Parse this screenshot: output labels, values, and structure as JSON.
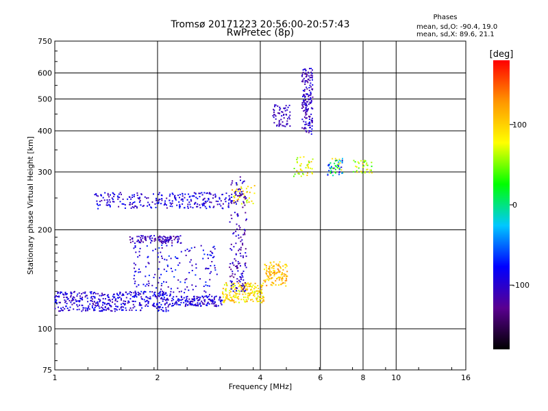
{
  "chart_data": {
    "type": "scatter",
    "title": "Tromsø 20171223 20:56:00-20:57:43",
    "subtitle": "RwPretec (8p)",
    "xlabel": "Frequency [MHz]",
    "ylabel": "Stationary phase Virtual Height [km]",
    "x_scale": "log",
    "y_scale": "log",
    "xlim": [
      1,
      16
    ],
    "ylim": [
      75,
      750
    ],
    "x_ticks": [
      1,
      2,
      4,
      6,
      8,
      10,
      16
    ],
    "y_ticks": [
      75,
      100,
      200,
      300,
      400,
      500,
      600,
      750
    ],
    "grid": true,
    "phases": {
      "heading": "Phases",
      "line_o": "mean, sd,O: -90.4, 19.0",
      "line_x": "mean, sd,X:  89.6, 21.1"
    },
    "colorbar": {
      "label": "[deg]",
      "range": [
        -180,
        180
      ],
      "ticks": [
        100,
        0,
        -100
      ],
      "colors": [
        "#000000",
        "#5a0090",
        "#0000ff",
        "#00c8ff",
        "#00ff00",
        "#ffff00",
        "#ff9600",
        "#ff0000"
      ]
    },
    "series": [
      {
        "freq_range": [
          1.0,
          2.2
        ],
        "height_range": [
          113,
          130
        ],
        "phase_range": [
          -120,
          -70
        ],
        "count": 420
      },
      {
        "freq_range": [
          2.2,
          3.1
        ],
        "height_range": [
          117,
          126
        ],
        "phase_range": [
          -120,
          -70
        ],
        "count": 150
      },
      {
        "freq_range": [
          3.1,
          4.1
        ],
        "height_range": [
          120,
          138
        ],
        "phase_range": [
          60,
          130
        ],
        "count": 200
      },
      {
        "freq_range": [
          4.1,
          4.8
        ],
        "height_range": [
          135,
          160
        ],
        "phase_range": [
          80,
          140
        ],
        "count": 120
      },
      {
        "freq_range": [
          1.3,
          3.3
        ],
        "height_range": [
          232,
          260
        ],
        "phase_range": [
          -120,
          -70
        ],
        "count": 260
      },
      {
        "freq_range": [
          1.65,
          2.35
        ],
        "height_range": [
          182,
          192
        ],
        "phase_range": [
          -130,
          -90
        ],
        "count": 110
      },
      {
        "freq_range": [
          3.3,
          3.85
        ],
        "height_range": [
          240,
          275
        ],
        "phase_range": [
          60,
          130
        ],
        "count": 45
      },
      {
        "freq_range": [
          3.25,
          3.65
        ],
        "height_range": [
          130,
          290
        ],
        "phase_range": [
          -135,
          -80
        ],
        "count": 160
      },
      {
        "freq_range": [
          4.35,
          4.9
        ],
        "height_range": [
          410,
          480
        ],
        "phase_range": [
          -120,
          -90
        ],
        "count": 60
      },
      {
        "freq_range": [
          5.3,
          5.7
        ],
        "height_range": [
          390,
          620
        ],
        "phase_range": [
          -130,
          -80
        ],
        "count": 170
      },
      {
        "freq_range": [
          5.0,
          5.7
        ],
        "height_range": [
          290,
          335
        ],
        "phase_range": [
          40,
          110
        ],
        "count": 40
      },
      {
        "freq_range": [
          6.3,
          7.0
        ],
        "height_range": [
          290,
          330
        ],
        "phase_range": [
          -110,
          100
        ],
        "count": 60
      },
      {
        "freq_range": [
          7.5,
          8.5
        ],
        "height_range": [
          295,
          325
        ],
        "phase_range": [
          30,
          110
        ],
        "count": 35
      },
      {
        "freq_range": [
          1.7,
          3.0
        ],
        "height_range": [
          125,
          180
        ],
        "phase_range": [
          -120,
          -60
        ],
        "count": 160
      }
    ]
  }
}
